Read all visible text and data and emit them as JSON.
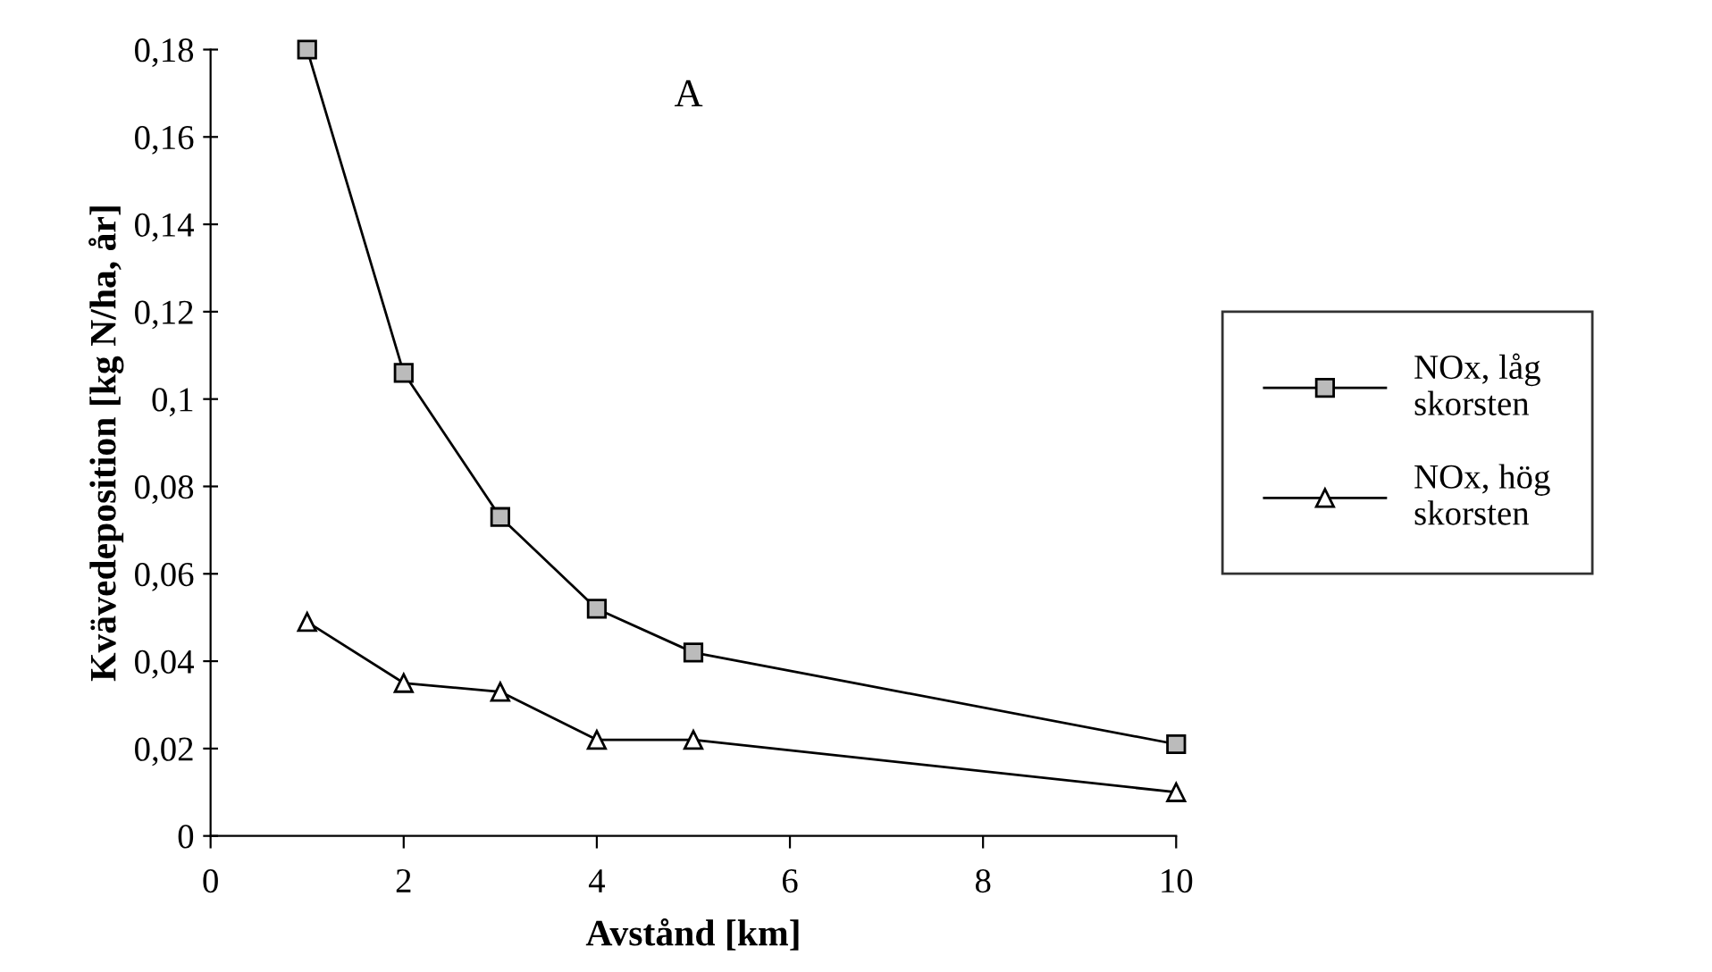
{
  "chart_data": {
    "type": "line",
    "title": "A",
    "xlabel": "Avstånd [km]",
    "ylabel": "Kvävedeposition [kg N/ha, år]",
    "x": [
      1,
      2,
      3,
      4,
      5,
      10
    ],
    "series": [
      {
        "name": "NOx, låg\nskorsten",
        "color": "#000000",
        "marker": "square",
        "values": [
          0.18,
          0.106,
          0.073,
          0.052,
          0.042,
          0.021
        ]
      },
      {
        "name": "NOx, hög\nskorsten",
        "color": "#000000",
        "marker": "triangle",
        "values": [
          0.049,
          0.035,
          0.033,
          0.022,
          0.022,
          0.01
        ]
      }
    ],
    "xlim": [
      0,
      10
    ],
    "xticks": [
      0,
      2,
      4,
      6,
      8,
      10
    ],
    "ylim": [
      0,
      0.18
    ],
    "yticks": [
      {
        "value": 0,
        "label": "0"
      },
      {
        "value": 0.02,
        "label": "0,02"
      },
      {
        "value": 0.04,
        "label": "0,04"
      },
      {
        "value": 0.06,
        "label": "0,06"
      },
      {
        "value": 0.08,
        "label": "0,08"
      },
      {
        "value": 0.1,
        "label": "0,1"
      },
      {
        "value": 0.12,
        "label": "0,12"
      },
      {
        "value": 0.14,
        "label": "0,14"
      },
      {
        "value": 0.16,
        "label": "0,16"
      },
      {
        "value": 0.18,
        "label": "0,18"
      }
    ],
    "legend": "right",
    "line_style": "solid",
    "grid": false
  }
}
